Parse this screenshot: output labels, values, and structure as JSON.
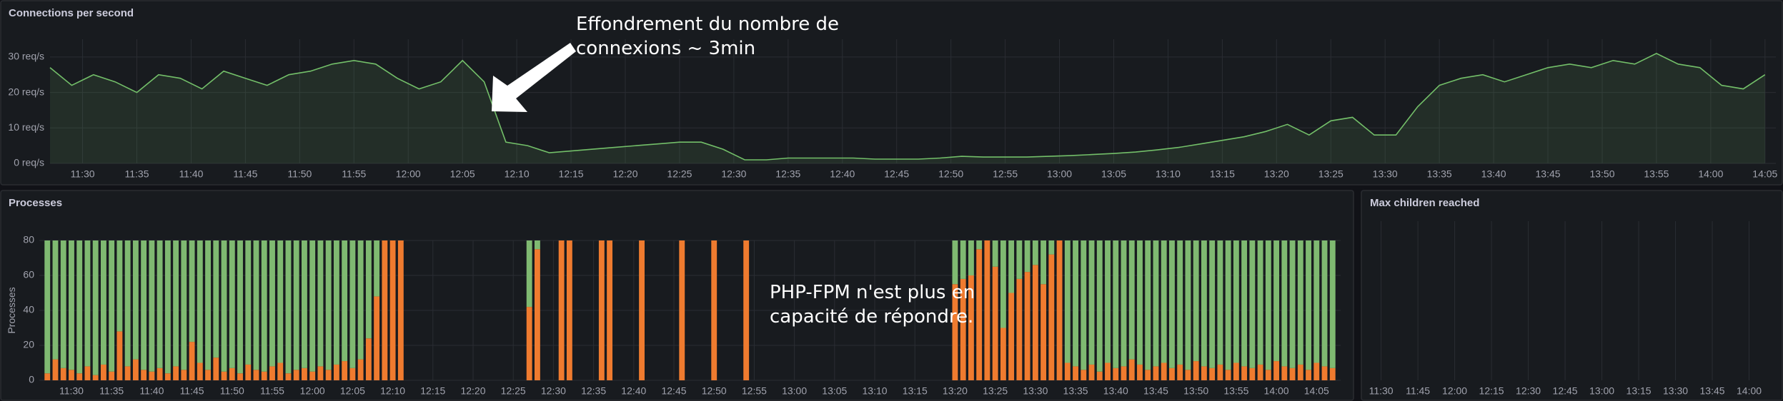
{
  "chart_data": [
    {
      "type": "line",
      "title": "Connections per second",
      "annotation": [
        "Effondrement du nombre de",
        "connexions ~ 3min"
      ],
      "color": "#73bf69",
      "x": [
        "11:27",
        "11:29",
        "11:31",
        "11:33",
        "11:35",
        "11:37",
        "11:39",
        "11:41",
        "11:43",
        "11:45",
        "11:47",
        "11:49",
        "11:51",
        "11:53",
        "11:55",
        "11:57",
        "11:59",
        "12:01",
        "12:03",
        "12:05",
        "12:07",
        "12:09",
        "12:11",
        "12:13",
        "12:15",
        "12:17",
        "12:19",
        "12:21",
        "12:23",
        "12:25",
        "12:27",
        "12:29",
        "12:31",
        "12:33",
        "12:35",
        "12:37",
        "12:39",
        "12:41",
        "12:43",
        "12:45",
        "12:47",
        "12:49",
        "12:51",
        "12:53",
        "12:55",
        "12:57",
        "12:59",
        "13:01",
        "13:03",
        "13:05",
        "13:07",
        "13:09",
        "13:11",
        "13:13",
        "13:15",
        "13:17",
        "13:19",
        "13:21",
        "13:23",
        "13:25",
        "13:27",
        "13:29",
        "13:31",
        "13:33",
        "13:35",
        "13:37",
        "13:39",
        "13:41",
        "13:43",
        "13:45",
        "13:47",
        "13:49",
        "13:51",
        "13:53",
        "13:55",
        "13:57",
        "13:59",
        "14:01",
        "14:03",
        "14:05"
      ],
      "values": [
        27,
        22,
        25,
        23,
        20,
        25,
        24,
        21,
        26,
        24,
        22,
        25,
        26,
        28,
        29,
        28,
        24,
        21,
        23,
        29,
        23,
        6,
        5,
        3,
        3.5,
        4,
        4.5,
        5,
        5.5,
        6,
        6,
        4,
        1,
        1,
        1.5,
        1.5,
        1.5,
        1.5,
        1.2,
        1.2,
        1.2,
        1.5,
        2,
        1.8,
        1.8,
        1.8,
        2,
        2.2,
        2.5,
        2.8,
        3.2,
        3.8,
        4.5,
        5.5,
        6.5,
        7.5,
        9,
        11,
        8,
        12,
        13,
        8,
        8,
        16,
        22,
        24,
        25,
        23,
        25,
        27,
        28,
        27,
        29,
        28,
        31,
        28,
        27,
        22,
        21,
        25
      ],
      "xlim": [
        "11:27",
        "14:06"
      ],
      "xticks": [
        "11:30",
        "11:35",
        "11:40",
        "11:45",
        "11:50",
        "11:55",
        "12:00",
        "12:05",
        "12:10",
        "12:15",
        "12:20",
        "12:25",
        "12:30",
        "12:35",
        "12:40",
        "12:45",
        "12:50",
        "12:55",
        "13:00",
        "13:05",
        "13:10",
        "13:15",
        "13:20",
        "13:25",
        "13:30",
        "13:35",
        "13:40",
        "13:45",
        "13:50",
        "13:55",
        "14:00",
        "14:05"
      ],
      "ylim": [
        0,
        35
      ],
      "yticks": [
        {
          "value": 0,
          "label": "0 req/s"
        },
        {
          "value": 10,
          "label": "10 req/s"
        },
        {
          "value": 20,
          "label": "20 req/s"
        },
        {
          "value": 30,
          "label": "30 req/s"
        }
      ],
      "grid": true
    },
    {
      "type": "stacked_bar",
      "title": "Processes",
      "ylabel": "Processes",
      "annotation": [
        "PHP-FPM n'est plus en",
        "capacité de répondre."
      ],
      "categories": [
        "11:27",
        "11:28",
        "11:29",
        "11:30",
        "11:31",
        "11:32",
        "11:33",
        "11:34",
        "11:35",
        "11:36",
        "11:37",
        "11:38",
        "11:39",
        "11:40",
        "11:41",
        "11:42",
        "11:43",
        "11:44",
        "11:45",
        "11:46",
        "11:47",
        "11:48",
        "11:49",
        "11:50",
        "11:51",
        "11:52",
        "11:53",
        "11:54",
        "11:55",
        "11:56",
        "11:57",
        "11:58",
        "11:59",
        "12:00",
        "12:01",
        "12:02",
        "12:03",
        "12:04",
        "12:05",
        "12:06",
        "12:07",
        "12:08",
        "12:09",
        "12:10",
        "12:11",
        "12:27",
        "12:28",
        "12:31",
        "12:32",
        "12:36",
        "12:37",
        "12:41",
        "12:46",
        "12:50",
        "12:54",
        "13:20",
        "13:21",
        "13:22",
        "13:23",
        "13:24",
        "13:25",
        "13:26",
        "13:27",
        "13:28",
        "13:29",
        "13:30",
        "13:31",
        "13:32",
        "13:33",
        "13:34",
        "13:35",
        "13:36",
        "13:37",
        "13:38",
        "13:39",
        "13:40",
        "13:41",
        "13:42",
        "13:43",
        "13:44",
        "13:45",
        "13:46",
        "13:47",
        "13:48",
        "13:49",
        "13:50",
        "13:51",
        "13:52",
        "13:53",
        "13:54",
        "13:55",
        "13:56",
        "13:57",
        "13:58",
        "13:59",
        "14:00",
        "14:01",
        "14:02",
        "14:03",
        "14:04",
        "14:05",
        "14:06",
        "14:07"
      ],
      "series": [
        {
          "color": "#ef7b2f",
          "values": [
            4,
            12,
            7,
            6,
            4,
            8,
            3,
            9,
            5,
            28,
            8,
            12,
            6,
            5,
            7,
            4,
            8,
            6,
            22,
            10,
            6,
            13,
            5,
            7,
            4,
            9,
            6,
            5,
            8,
            10,
            4,
            6,
            7,
            5,
            8,
            6,
            9,
            11,
            7,
            12,
            24,
            48,
            80,
            80,
            80,
            42,
            75,
            80,
            80,
            80,
            80,
            80,
            80,
            80,
            80,
            55,
            58,
            60,
            75,
            80,
            65,
            30,
            50,
            58,
            62,
            66,
            55,
            72,
            80,
            10,
            8,
            6,
            9,
            5,
            10,
            7,
            8,
            12,
            9,
            6,
            8,
            10,
            7,
            9,
            6,
            11,
            8,
            7,
            9,
            6,
            10,
            8,
            7,
            9,
            6,
            11,
            8,
            7,
            9,
            6,
            10,
            8,
            7
          ]
        },
        {
          "color": "#7fb971",
          "values": [
            76,
            68,
            73,
            74,
            76,
            72,
            77,
            71,
            75,
            52,
            72,
            68,
            74,
            75,
            73,
            76,
            72,
            74,
            58,
            70,
            74,
            67,
            75,
            73,
            76,
            71,
            74,
            75,
            72,
            70,
            76,
            74,
            73,
            75,
            72,
            74,
            71,
            69,
            73,
            68,
            56,
            32,
            0,
            0,
            0,
            38,
            5,
            0,
            0,
            0,
            0,
            0,
            0,
            0,
            0,
            25,
            22,
            20,
            5,
            0,
            15,
            50,
            30,
            22,
            18,
            14,
            25,
            8,
            0,
            70,
            72,
            74,
            71,
            75,
            70,
            73,
            72,
            68,
            71,
            74,
            72,
            70,
            73,
            71,
            74,
            69,
            72,
            73,
            71,
            74,
            70,
            72,
            73,
            71,
            74,
            69,
            72,
            73,
            71,
            74,
            70,
            72,
            73
          ]
        }
      ],
      "xlim": [
        "11:26",
        "14:08"
      ],
      "xticks": [
        "11:30",
        "11:35",
        "11:40",
        "11:45",
        "11:50",
        "11:55",
        "12:00",
        "12:05",
        "12:10",
        "12:15",
        "12:20",
        "12:25",
        "12:30",
        "12:35",
        "12:40",
        "12:45",
        "12:50",
        "12:55",
        "13:00",
        "13:05",
        "13:10",
        "13:15",
        "13:20",
        "13:25",
        "13:30",
        "13:35",
        "13:40",
        "13:45",
        "13:50",
        "13:55",
        "14:00",
        "14:05"
      ],
      "ylim": [
        0,
        80
      ],
      "yticks": [
        0,
        20,
        40,
        60,
        80
      ],
      "grid": true
    },
    {
      "type": "line",
      "title": "Max children reached",
      "xlim": [
        "11:24",
        "14:08"
      ],
      "xticks": [
        "11:30",
        "11:45",
        "12:00",
        "12:15",
        "12:30",
        "12:45",
        "13:00",
        "13:15",
        "13:30",
        "13:45",
        "14:00"
      ],
      "grid": true
    }
  ]
}
